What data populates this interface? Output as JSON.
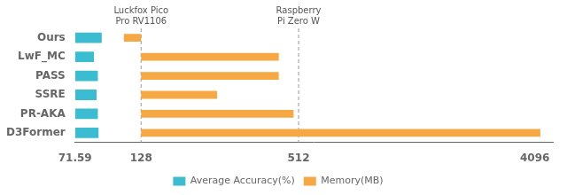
{
  "chart_data": {
    "type": "bar",
    "orientation": "horizontal",
    "log": "x",
    "categories": [
      "Ours",
      "LwF_MC",
      "PASS",
      "SSRE",
      "PR-AKA",
      "D3Former"
    ],
    "series": [
      {
        "name": "Average Accuracy(%)",
        "color": "#3bbcd0",
        "values": [
          90.5,
          84.5,
          87.5,
          86.5,
          87.5,
          88.0
        ]
      },
      {
        "name": "Memory(MB)",
        "color": "#f5a843",
        "base": 128,
        "values": [
          110,
          430,
          430,
          250,
          490,
          4300
        ]
      }
    ],
    "xlim": [
      71.59,
      4800
    ],
    "xticks": [
      71.59,
      128,
      512,
      4096
    ],
    "annotations": [
      {
        "x": 128,
        "text": [
          "Luckfox Pico",
          "Pro RV1106"
        ],
        "line_style": "dashed"
      },
      {
        "x": 512,
        "text": [
          "Raspberry",
          "Pi Zero W"
        ],
        "line_style": "dashed"
      }
    ],
    "grid": false,
    "legend": "bottom"
  }
}
